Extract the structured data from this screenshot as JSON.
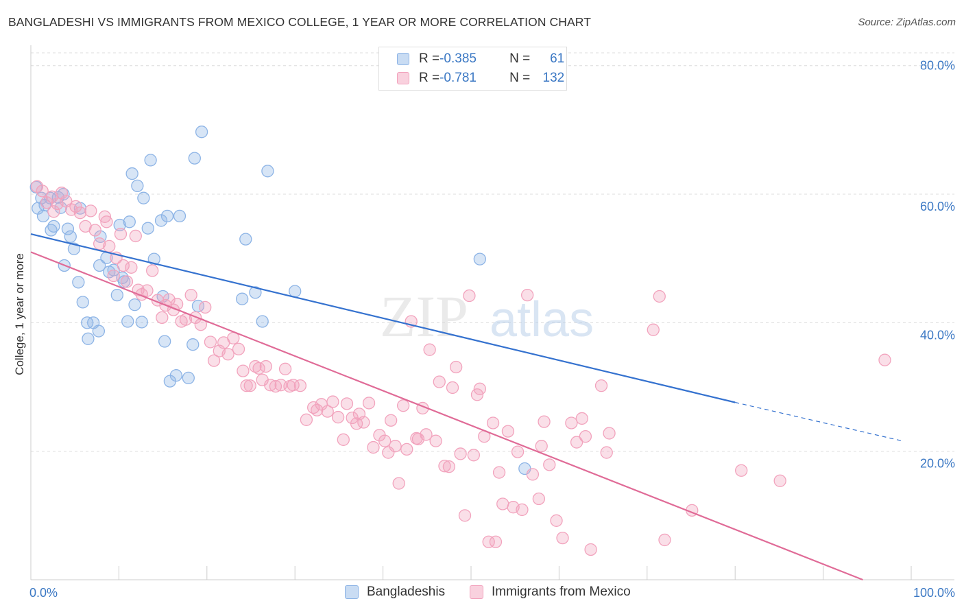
{
  "title": "BANGLADESHI VS IMMIGRANTS FROM MEXICO COLLEGE, 1 YEAR OR MORE CORRELATION CHART",
  "source": "Source: ZipAtlas.com",
  "watermark": {
    "zip": "ZIP",
    "atlas": "atlas"
  },
  "legend_top": {
    "rows": [
      {
        "r_label": "R = ",
        "r_value": "-0.385",
        "n_label": "N = ",
        "n_value": "61",
        "color": "#8db4e6"
      },
      {
        "r_label": "R = ",
        "r_value": "-0.781",
        "n_label": "N = ",
        "n_value": "132",
        "color": "#f2a3bd"
      }
    ]
  },
  "legend_bottom": {
    "items": [
      {
        "label": "Bangladeshis",
        "color": "#8db4e6"
      },
      {
        "label": "Immigrants from Mexico",
        "color": "#f2a3bd"
      }
    ]
  },
  "chart_data": {
    "type": "scatter",
    "title": "BANGLADESHI VS IMMIGRANTS FROM MEXICO COLLEGE, 1 YEAR OR MORE CORRELATION CHART",
    "xlabel": "",
    "ylabel": "College, 1 year or more",
    "xlim": [
      0,
      100
    ],
    "ylim": [
      0,
      82
    ],
    "x_tick_labels": [
      {
        "value": 0,
        "label": "0.0%"
      },
      {
        "value": 100,
        "label": "100.0%"
      }
    ],
    "y_tick_labels": [
      {
        "value": 20,
        "label": "20.0%"
      },
      {
        "value": 40,
        "label": "40.0%"
      },
      {
        "value": 60,
        "label": "60.0%"
      },
      {
        "value": 80,
        "label": "80.0%"
      }
    ],
    "grid": true,
    "legend_position": "bottom",
    "series": [
      {
        "name": "Bangladeshis",
        "color": "#8db4e6",
        "line_color": "#3572cf",
        "trend": {
          "x0": 0,
          "y0": 53.8,
          "x1": 80,
          "y1": 27.6,
          "dash_to_x": 99,
          "dash_to_y": 21.6
        },
        "points": [
          [
            0.6,
            61.1
          ],
          [
            0.8,
            57.8
          ],
          [
            1.2,
            59.4
          ],
          [
            1.4,
            56.6
          ],
          [
            1.6,
            58.3
          ],
          [
            2.2,
            59.4
          ],
          [
            2.3,
            54.4
          ],
          [
            2.6,
            55.0
          ],
          [
            3.1,
            59.5
          ],
          [
            3.4,
            57.9
          ],
          [
            3.7,
            60.0
          ],
          [
            3.8,
            48.9
          ],
          [
            4.2,
            54.6
          ],
          [
            4.5,
            53.4
          ],
          [
            4.9,
            51.5
          ],
          [
            5.4,
            46.3
          ],
          [
            5.6,
            57.8
          ],
          [
            5.9,
            43.2
          ],
          [
            6.4,
            40.0
          ],
          [
            6.5,
            37.5
          ],
          [
            7.1,
            40.0
          ],
          [
            7.7,
            38.7
          ],
          [
            7.8,
            48.9
          ],
          [
            7.9,
            53.4
          ],
          [
            8.6,
            50.1
          ],
          [
            8.9,
            47.9
          ],
          [
            9.4,
            48.2
          ],
          [
            9.8,
            44.3
          ],
          [
            10.4,
            47.0
          ],
          [
            10.6,
            46.4
          ],
          [
            11.0,
            40.2
          ],
          [
            11.2,
            55.7
          ],
          [
            11.5,
            63.2
          ],
          [
            11.8,
            42.8
          ],
          [
            12.1,
            61.3
          ],
          [
            12.6,
            40.1
          ],
          [
            12.8,
            59.4
          ],
          [
            13.3,
            54.7
          ],
          [
            13.6,
            65.3
          ],
          [
            14.0,
            49.9
          ],
          [
            15.0,
            44.1
          ],
          [
            15.2,
            37.1
          ],
          [
            15.5,
            56.6
          ],
          [
            15.8,
            30.9
          ],
          [
            16.5,
            31.8
          ],
          [
            16.9,
            56.6
          ],
          [
            18.4,
            36.6
          ],
          [
            18.6,
            65.6
          ],
          [
            19.0,
            42.6
          ],
          [
            19.4,
            69.7
          ],
          [
            24.0,
            43.7
          ],
          [
            24.4,
            53.0
          ],
          [
            25.5,
            44.7
          ],
          [
            26.3,
            40.2
          ],
          [
            26.9,
            63.6
          ],
          [
            30.0,
            44.9
          ],
          [
            51.0,
            49.9
          ],
          [
            56.1,
            17.3
          ],
          [
            17.9,
            31.4
          ],
          [
            14.8,
            55.9
          ],
          [
            10.1,
            55.2
          ]
        ]
      },
      {
        "name": "Immigrants from Mexico",
        "color": "#f2a3bd",
        "line_color": "#e06b97",
        "trend": {
          "x0": 0,
          "y0": 51.0,
          "x1": 94.5,
          "y1": 0
        },
        "points": [
          [
            0.7,
            61.2
          ],
          [
            1.3,
            60.5
          ],
          [
            1.8,
            58.7
          ],
          [
            2.4,
            59.6
          ],
          [
            2.6,
            57.3
          ],
          [
            3.0,
            58.5
          ],
          [
            3.5,
            60.2
          ],
          [
            4.0,
            58.9
          ],
          [
            4.6,
            57.6
          ],
          [
            5.1,
            58.1
          ],
          [
            5.6,
            57.1
          ],
          [
            6.2,
            55.0
          ],
          [
            6.8,
            57.4
          ],
          [
            7.3,
            54.4
          ],
          [
            7.8,
            52.3
          ],
          [
            8.4,
            56.5
          ],
          [
            8.6,
            55.7
          ],
          [
            8.9,
            51.9
          ],
          [
            9.4,
            47.3
          ],
          [
            9.7,
            50.1
          ],
          [
            10.2,
            53.8
          ],
          [
            10.5,
            48.9
          ],
          [
            10.9,
            46.4
          ],
          [
            11.4,
            48.6
          ],
          [
            11.9,
            53.5
          ],
          [
            12.2,
            45.1
          ],
          [
            12.6,
            44.4
          ],
          [
            13.2,
            45.0
          ],
          [
            13.8,
            48.1
          ],
          [
            14.4,
            43.5
          ],
          [
            14.9,
            40.8
          ],
          [
            15.3,
            42.7
          ],
          [
            15.7,
            43.6
          ],
          [
            16.2,
            42.0
          ],
          [
            16.6,
            42.9
          ],
          [
            17.1,
            40.2
          ],
          [
            17.6,
            40.5
          ],
          [
            18.2,
            44.3
          ],
          [
            18.7,
            40.8
          ],
          [
            19.3,
            39.7
          ],
          [
            19.8,
            42.4
          ],
          [
            20.4,
            37.0
          ],
          [
            20.8,
            34.1
          ],
          [
            21.4,
            35.6
          ],
          [
            21.9,
            36.9
          ],
          [
            22.4,
            35.1
          ],
          [
            23.0,
            37.6
          ],
          [
            23.6,
            35.9
          ],
          [
            24.1,
            32.5
          ],
          [
            24.5,
            30.2
          ],
          [
            24.9,
            30.2
          ],
          [
            25.5,
            33.2
          ],
          [
            25.9,
            32.9
          ],
          [
            26.3,
            31.1
          ],
          [
            26.7,
            33.2
          ],
          [
            27.2,
            30.3
          ],
          [
            27.8,
            30.1
          ],
          [
            28.4,
            30.3
          ],
          [
            28.9,
            32.8
          ],
          [
            29.4,
            30.1
          ],
          [
            29.8,
            30.3
          ],
          [
            30.6,
            30.2
          ],
          [
            31.3,
            24.9
          ],
          [
            32.1,
            26.8
          ],
          [
            32.5,
            26.4
          ],
          [
            33.0,
            27.3
          ],
          [
            33.7,
            26.2
          ],
          [
            34.3,
            27.7
          ],
          [
            34.9,
            25.3
          ],
          [
            35.5,
            21.8
          ],
          [
            35.9,
            27.4
          ],
          [
            36.5,
            25.2
          ],
          [
            37.0,
            24.3
          ],
          [
            37.3,
            25.8
          ],
          [
            37.8,
            24.5
          ],
          [
            38.4,
            27.5
          ],
          [
            38.9,
            20.6
          ],
          [
            39.6,
            22.5
          ],
          [
            40.2,
            21.6
          ],
          [
            40.6,
            19.8
          ],
          [
            40.9,
            24.8
          ],
          [
            41.4,
            20.8
          ],
          [
            41.8,
            15.0
          ],
          [
            42.3,
            27.1
          ],
          [
            42.7,
            20.3
          ],
          [
            43.2,
            40.2
          ],
          [
            44.0,
            21.9
          ],
          [
            44.5,
            26.7
          ],
          [
            44.9,
            22.6
          ],
          [
            45.3,
            35.8
          ],
          [
            46.0,
            21.6
          ],
          [
            46.4,
            30.8
          ],
          [
            47.0,
            17.7
          ],
          [
            47.5,
            17.6
          ],
          [
            47.9,
            29.9
          ],
          [
            48.3,
            33.1
          ],
          [
            48.8,
            19.6
          ],
          [
            49.3,
            10.0
          ],
          [
            49.8,
            44.2
          ],
          [
            50.3,
            19.4
          ],
          [
            51.0,
            29.7
          ],
          [
            51.5,
            22.3
          ],
          [
            52.0,
            5.9
          ],
          [
            52.5,
            24.4
          ],
          [
            52.8,
            5.9
          ],
          [
            53.2,
            16.7
          ],
          [
            53.6,
            11.8
          ],
          [
            54.2,
            23.1
          ],
          [
            54.8,
            11.3
          ],
          [
            55.3,
            19.9
          ],
          [
            55.8,
            10.9
          ],
          [
            56.4,
            44.3
          ],
          [
            57.0,
            16.4
          ],
          [
            57.7,
            12.6
          ],
          [
            58.3,
            24.6
          ],
          [
            58.9,
            17.9
          ],
          [
            59.7,
            9.2
          ],
          [
            60.4,
            6.5
          ],
          [
            61.4,
            24.4
          ],
          [
            62.0,
            21.4
          ],
          [
            62.6,
            25.1
          ],
          [
            63.0,
            22.3
          ],
          [
            63.6,
            4.7
          ],
          [
            64.8,
            30.2
          ],
          [
            65.4,
            19.8
          ],
          [
            65.7,
            22.8
          ],
          [
            70.7,
            38.9
          ],
          [
            71.4,
            44.1
          ],
          [
            72.0,
            6.2
          ],
          [
            75.1,
            10.8
          ],
          [
            80.7,
            17.0
          ],
          [
            85.1,
            15.4
          ],
          [
            97.0,
            34.2
          ],
          [
            50.7,
            28.8
          ],
          [
            58.0,
            20.8
          ],
          [
            43.8,
            22.0
          ]
        ]
      }
    ]
  }
}
